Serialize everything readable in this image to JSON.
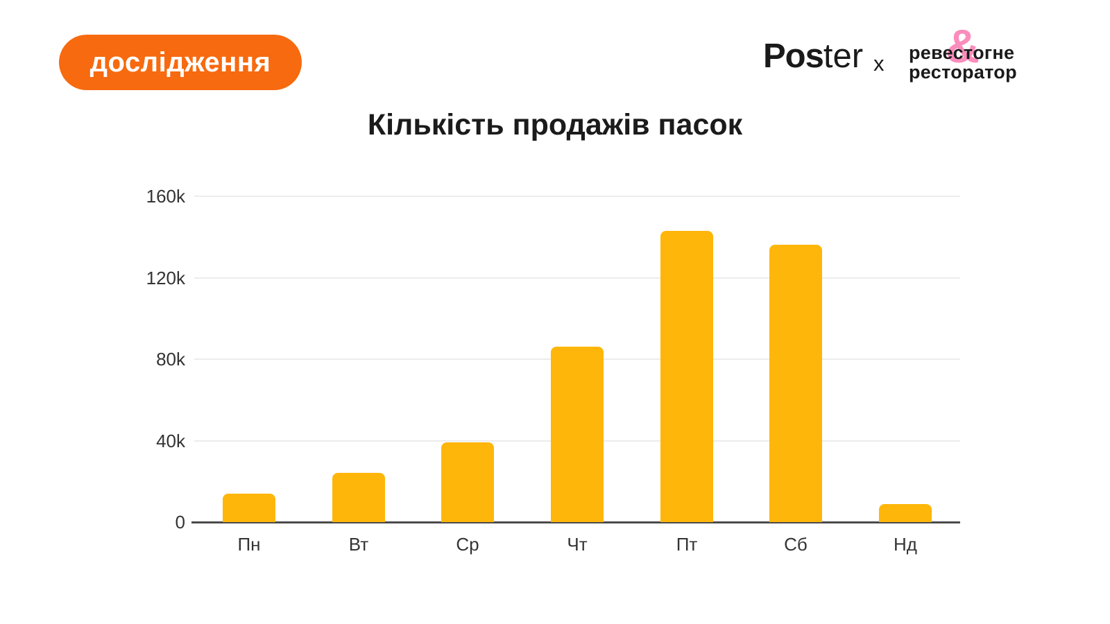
{
  "badge": {
    "label": "дослідження",
    "bg_color": "#F76A0F",
    "text_color": "#FFFFFF"
  },
  "brand": {
    "poster_bold": "Pos",
    "poster_light": "ter",
    "separator": "x",
    "ampersand": "&",
    "partner_line1": "ревестогне",
    "partner_line2": "ресторатор",
    "ampersand_color": "#FB8DBC",
    "text_color": "#1A1A1A"
  },
  "chart_data": {
    "type": "bar",
    "title": "Кількість продажів пасок",
    "xlabel": "",
    "ylabel": "",
    "categories": [
      "Пн",
      "Вт",
      "Ср",
      "Чт",
      "Пт",
      "Сб",
      "Нд"
    ],
    "values": [
      14000,
      24000,
      39000,
      86000,
      143000,
      136000,
      9000
    ],
    "ylim": [
      0,
      160000
    ],
    "y_ticks": [
      {
        "value": 0,
        "label": "0"
      },
      {
        "value": 40000,
        "label": "40k"
      },
      {
        "value": 80000,
        "label": "80k"
      },
      {
        "value": 120000,
        "label": "120k"
      },
      {
        "value": 160000,
        "label": "160k"
      }
    ],
    "grid": true,
    "legend": "none",
    "bar_color": "#FFB60A",
    "grid_color": "#ECECEC",
    "axis_color": "#4A4A4A",
    "tick_label_color": "#333333"
  }
}
